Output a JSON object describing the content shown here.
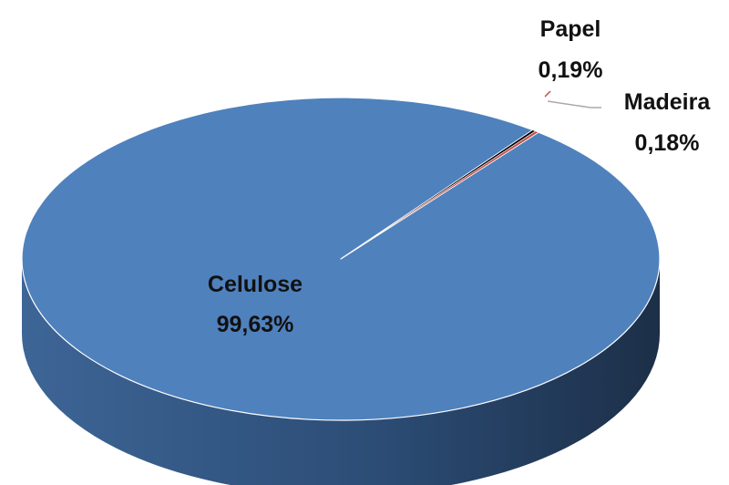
{
  "chart_data": {
    "type": "pie",
    "style": "3d",
    "legend": "none",
    "slices": [
      {
        "label": "Celulose",
        "value": 99.63,
        "value_text": "99,63%",
        "color": "#4f81bd",
        "side_color": "#2b4a6d"
      },
      {
        "label": "Madeira",
        "value": 0.18,
        "value_text": "0,18%",
        "color": "#000000",
        "side_color": "#000000"
      },
      {
        "label": "Papel",
        "value": 0.19,
        "value_text": "0,19%",
        "color": "#c0504d",
        "side_color": "#8e3a38"
      }
    ]
  }
}
